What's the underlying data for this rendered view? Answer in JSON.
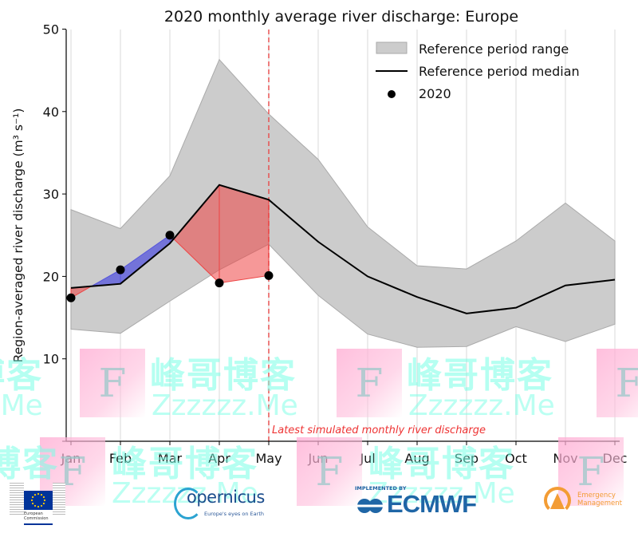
{
  "chart_data": {
    "type": "area",
    "title": "2020 monthly average river discharge: Europe",
    "xlabel": "",
    "ylabel": "Region-averaged river discharge (m³ s⁻¹)",
    "ylim": [
      0,
      50
    ],
    "yticks": [
      10,
      20,
      30,
      40,
      50
    ],
    "categories": [
      "Jan",
      "Feb",
      "Mar",
      "Apr",
      "May",
      "Jun",
      "Jul",
      "Aug",
      "Sep",
      "Oct",
      "Nov",
      "Dec"
    ],
    "grid": "vertical",
    "legend_position": "top-right",
    "series": [
      {
        "name": "Reference period range",
        "kind": "band",
        "color": "#cccccc",
        "upper": [
          28.1,
          25.8,
          32.2,
          46.3,
          39.7,
          34.2,
          26.0,
          21.3,
          20.9,
          24.3,
          28.9,
          24.3
        ],
        "lower": [
          13.6,
          13.1,
          17.0,
          20.8,
          23.9,
          17.7,
          13.0,
          11.4,
          11.5,
          13.9,
          12.1,
          14.2
        ]
      },
      {
        "name": "Reference period median",
        "kind": "line",
        "color": "#000000",
        "values": [
          18.6,
          19.1,
          24.0,
          31.1,
          29.3,
          24.2,
          20.0,
          17.5,
          15.5,
          16.2,
          18.9,
          19.6
        ]
      },
      {
        "name": "2020",
        "kind": "points",
        "color": "#000000",
        "values": [
          17.4,
          20.8,
          25.0,
          19.2,
          20.1
        ]
      }
    ],
    "fill_colors": {
      "above": "#5555dd",
      "below": "#ee4444"
    },
    "annotation": {
      "text": "Latest simulated monthly river discharge",
      "at_category": "May",
      "color": "#ee3333"
    }
  },
  "footer": {
    "ec": {
      "line1": "European",
      "line2": "Commission"
    },
    "copernicus": {
      "word": "opernicus",
      "tagline": "Europe's eyes on Earth"
    },
    "ecmwf": {
      "implemented": "IMPLEMENTED BY",
      "word": "ECMWF"
    },
    "em": {
      "line1": "Emergency",
      "line2": "Management"
    }
  },
  "watermark": {
    "cn": "峰哥博客",
    "en": "Zzzzzz.Me",
    "letter": "F"
  }
}
